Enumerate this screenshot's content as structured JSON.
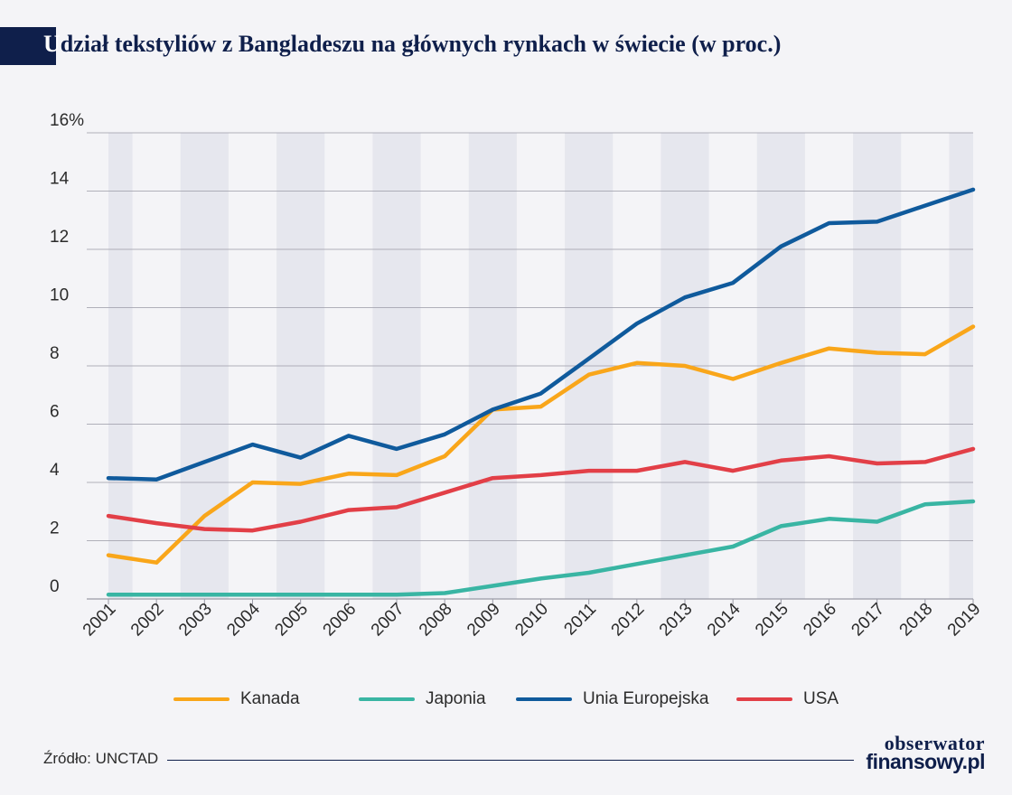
{
  "title": {
    "first_letter": "U",
    "rest": "dział tekstyliów z Bangladeszu na głównych rynkach w świecie (w proc.)"
  },
  "source": "Źródło: UNCTAD",
  "logo": {
    "line1": "obserwator",
    "line2": "finansowy.pl"
  },
  "colors": {
    "background": "#f4f4f7",
    "band": "#e6e7ee",
    "grid": "#9a9aa6",
    "axis_text": "#2b2b2b",
    "navy": "#0f1f4b"
  },
  "chart_data": {
    "type": "line",
    "title": "Udział tekstyliów z Bangladeszu na głównych rynkach w świecie (w proc.)",
    "xlabel": "",
    "ylabel": "",
    "ylim": [
      0,
      16
    ],
    "yticks": [
      0,
      2,
      4,
      6,
      8,
      10,
      12,
      14,
      16
    ],
    "ytick_labels": [
      "0",
      "2",
      "4",
      "6",
      "8",
      "10",
      "12",
      "14",
      "16%"
    ],
    "x": [
      "2001",
      "2002",
      "2003",
      "2004",
      "2005",
      "2006",
      "2007",
      "2008",
      "2009",
      "2010",
      "2011",
      "2012",
      "2013",
      "2014",
      "2015",
      "2016",
      "2017",
      "2018",
      "2019"
    ],
    "grid": true,
    "legend_position": "bottom",
    "series": [
      {
        "name": "Kanada",
        "color": "#f9a61a",
        "values": [
          1.5,
          1.25,
          2.85,
          4.0,
          3.95,
          4.3,
          4.25,
          4.9,
          6.5,
          6.6,
          7.7,
          8.1,
          8.0,
          7.55,
          8.1,
          8.6,
          8.45,
          8.4,
          9.35
        ]
      },
      {
        "name": "Japonia",
        "color": "#39b5a3",
        "values": [
          0.15,
          0.15,
          0.15,
          0.15,
          0.15,
          0.15,
          0.15,
          0.2,
          0.45,
          0.7,
          0.9,
          1.2,
          1.5,
          1.8,
          2.5,
          2.75,
          2.65,
          3.25,
          3.35
        ]
      },
      {
        "name": "Unia Europejska",
        "color": "#0f5a9c",
        "values": [
          4.15,
          4.1,
          4.7,
          5.3,
          4.85,
          5.6,
          5.15,
          5.65,
          6.5,
          7.05,
          8.25,
          9.45,
          10.35,
          10.85,
          12.1,
          12.9,
          12.95,
          13.5,
          14.05
        ]
      },
      {
        "name": "USA",
        "color": "#e23f47",
        "values": [
          2.85,
          2.6,
          2.4,
          2.35,
          2.65,
          3.05,
          3.15,
          3.65,
          4.15,
          4.25,
          4.4,
          4.4,
          4.7,
          4.4,
          4.75,
          4.9,
          4.65,
          4.7,
          5.15
        ]
      }
    ]
  }
}
